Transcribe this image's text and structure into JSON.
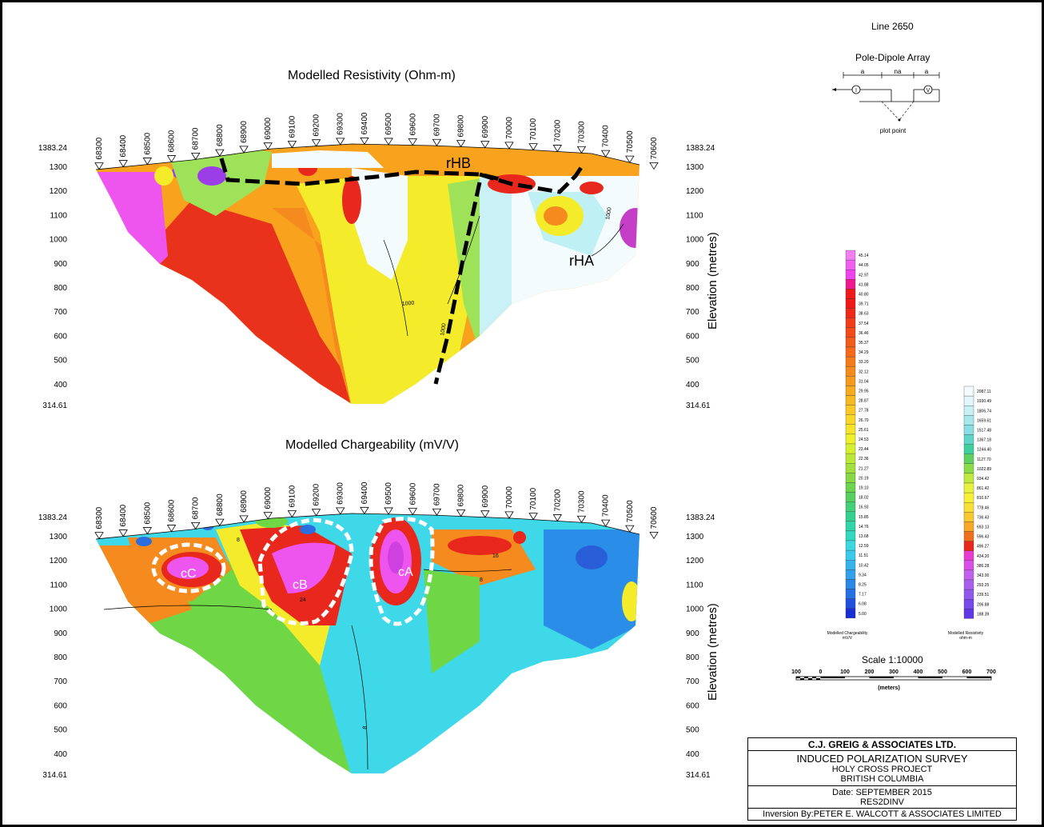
{
  "line_label": "Line 2650",
  "array": {
    "title": "Pole-Dipole Array",
    "a_left": "a",
    "na": "na",
    "a_right": "a",
    "plot_point": "plot point",
    "current_symbol": "I",
    "voltage_symbol": "V"
  },
  "resistivity_section": {
    "title": "Modelled Resistivity (Ohm-m)",
    "stations": [
      "68300",
      "68400",
      "68500",
      "68600",
      "68700",
      "68800",
      "68900",
      "69000",
      "69100",
      "69200",
      "69300",
      "69400",
      "69500",
      "69600",
      "69700",
      "69800",
      "69900",
      "70000",
      "70100",
      "70200",
      "70300",
      "70400",
      "70500",
      "70600"
    ],
    "elev_top": "1383.24",
    "elev_bottom": "314.61",
    "elev_ticks": [
      "1300",
      "1200",
      "1100",
      "1000",
      "900",
      "800",
      "700",
      "600",
      "500",
      "400"
    ],
    "axis_label": "Elevation (metres)",
    "annotations": [
      "rHB",
      "rHA"
    ],
    "contour_labels": [
      "1000",
      "1000",
      "1000"
    ]
  },
  "chargeability_section": {
    "title": "Modelled Chargeability (mV/V)",
    "stations": [
      "68300",
      "68400",
      "68500",
      "68600",
      "68700",
      "68800",
      "68900",
      "69000",
      "69100",
      "69200",
      "69300",
      "69400",
      "69500",
      "69600",
      "69700",
      "69800",
      "69900",
      "70000",
      "70100",
      "70200",
      "70300",
      "70400",
      "70500",
      "70600"
    ],
    "elev_top": "1383.24",
    "elev_bottom": "314.61",
    "elev_ticks": [
      "1300",
      "1200",
      "1100",
      "1000",
      "900",
      "800",
      "700",
      "600",
      "500",
      "400"
    ],
    "axis_label": "Elevation (metres)",
    "annotations": [
      "cC",
      "cB",
      "cA"
    ],
    "contour_labels": [
      "8",
      "16",
      "24",
      "8",
      "8"
    ]
  },
  "chargeability_scale": {
    "values": [
      "45.14",
      "44.05",
      "42.97",
      "41.88",
      "40.80",
      "39.71",
      "38.63",
      "37.54",
      "36.46",
      "35.37",
      "34.29",
      "33.20",
      "32.12",
      "31.04",
      "29.95",
      "28.87",
      "27.78",
      "26.70",
      "25.61",
      "24.53",
      "23.44",
      "22.36",
      "21.27",
      "20.19",
      "19.10",
      "18.02",
      "16.93",
      "15.85",
      "14.76",
      "13.68",
      "12.59",
      "11.51",
      "10.42",
      "9.34",
      "8.25",
      "7.17",
      "6.08",
      "5.00"
    ],
    "label": "Modelled Chargeability",
    "unit": "mV/V"
  },
  "resistivity_scale": {
    "values": [
      "2087.11",
      "1930.49",
      "1806.74",
      "1659.61",
      "1517.48",
      "1367.18",
      "1244.40",
      "1127.70",
      "1022.89",
      "934.42",
      "861.42",
      "810.67",
      "778.46",
      "736.43",
      "693.13",
      "596.43",
      "496.27",
      "434.20",
      "386.28",
      "343.00",
      "293.25",
      "239.51",
      "206.88",
      "188.39"
    ],
    "label": "Modelled Resistivity",
    "unit": "ohm-m"
  },
  "scale_bar": {
    "title": "Scale 1:10000",
    "ticks": [
      "100",
      "0",
      "100",
      "200",
      "300",
      "400",
      "500",
      "600",
      "700"
    ],
    "unit": "(meters)"
  },
  "title_block": {
    "company": "C.J. GREIG & ASSOCIATES LTD.",
    "survey": "INDUCED POLARIZATION SURVEY",
    "project": "HOLY CROSS PROJECT",
    "province": "BRITISH COLUMBIA",
    "date": "Date: SEPTEMBER 2015",
    "software": "RES2DINV",
    "inversion": "Inversion By:PETER E. WALCOTT & ASSOCIATES LIMITED"
  },
  "colors": {
    "pink": "#ee55ee",
    "red": "#e8281c",
    "orange": "#f58a1e",
    "yellow": "#f4ec2a",
    "green": "#6fd646",
    "cyan": "#3ed8e8",
    "blue": "#2a6ee0",
    "white": "#f4fbfc"
  }
}
